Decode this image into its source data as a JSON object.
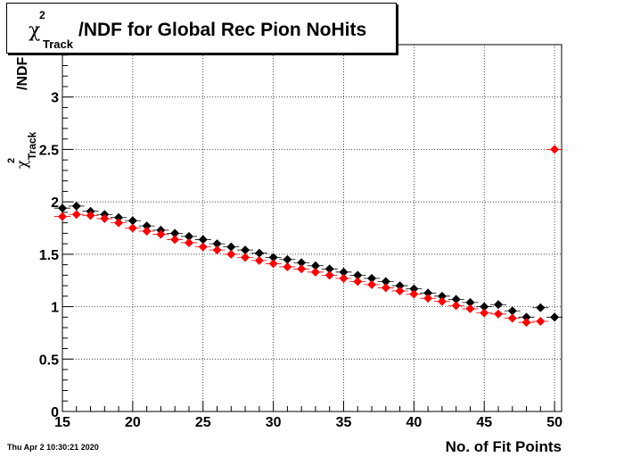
{
  "title": {
    "symbol": "χ",
    "superscript": "2",
    "subscript": "Track",
    "text": "/NDF for Global Rec Pion NoHits"
  },
  "timestamp": "Thu Apr  2 10:30:21 2020",
  "chart_data": {
    "type": "scatter",
    "title": "χ²_Track/NDF for Global Rec Pion NoHits",
    "xlabel": "No. of Fit Points",
    "ylabel": "χ²_Track/NDF",
    "xlim": [
      15,
      50.5
    ],
    "ylim": [
      0,
      3.5
    ],
    "x_ticks": [
      15,
      20,
      25,
      30,
      35,
      40,
      45,
      50
    ],
    "y_ticks": [
      0,
      0.5,
      1,
      1.5,
      2,
      2.5,
      3
    ],
    "grid": true,
    "series": [
      {
        "color": "#000000",
        "marker": "diamond",
        "x": [
          15,
          16,
          17,
          18,
          19,
          20,
          21,
          22,
          23,
          24,
          25,
          26,
          27,
          28,
          29,
          30,
          31,
          32,
          33,
          34,
          35,
          36,
          37,
          38,
          39,
          40,
          41,
          42,
          43,
          44,
          45,
          46,
          47,
          48,
          49,
          50
        ],
        "y": [
          1.94,
          1.96,
          1.91,
          1.88,
          1.85,
          1.82,
          1.77,
          1.73,
          1.7,
          1.67,
          1.64,
          1.6,
          1.57,
          1.54,
          1.51,
          1.47,
          1.45,
          1.42,
          1.39,
          1.36,
          1.33,
          1.3,
          1.27,
          1.24,
          1.2,
          1.17,
          1.13,
          1.1,
          1.07,
          1.04,
          1.0,
          1.02,
          0.96,
          0.9,
          0.99,
          0.9
        ]
      },
      {
        "color": "#ff0000",
        "marker": "diamond",
        "x": [
          15,
          16,
          17,
          18,
          19,
          20,
          21,
          22,
          23,
          24,
          25,
          26,
          27,
          28,
          29,
          30,
          31,
          32,
          33,
          34,
          35,
          36,
          37,
          38,
          39,
          40,
          41,
          42,
          43,
          44,
          45,
          46,
          47,
          48,
          49,
          50
        ],
        "y": [
          1.86,
          1.88,
          1.87,
          1.84,
          1.8,
          1.75,
          1.72,
          1.69,
          1.64,
          1.61,
          1.57,
          1.54,
          1.5,
          1.47,
          1.44,
          1.41,
          1.38,
          1.36,
          1.33,
          1.3,
          1.27,
          1.24,
          1.21,
          1.18,
          1.15,
          1.12,
          1.08,
          1.05,
          1.01,
          0.98,
          0.94,
          0.93,
          0.89,
          0.85,
          0.86,
          2.5
        ]
      }
    ]
  }
}
